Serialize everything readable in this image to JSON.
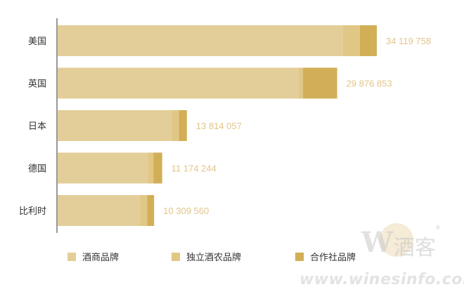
{
  "chart_data": {
    "type": "bar",
    "orientation": "horizontal",
    "stacked": true,
    "title": "",
    "xlabel": "",
    "ylabel": "",
    "categories": [
      "美国",
      "英国",
      "日本",
      "德国",
      "比利时"
    ],
    "totals": [
      "34 119 758",
      "29 876 853",
      "13 814 057",
      "11 174 244",
      "10 309 560"
    ],
    "series": [
      {
        "name": "酒商品牌",
        "color": "#e3ce99",
        "values": [
          30510000,
          25720000,
          12170000,
          9630000,
          8780000
        ]
      },
      {
        "name": "独立酒农品牌",
        "color": "#e1c785",
        "values": [
          1800000,
          500000,
          800000,
          600000,
          800000
        ]
      },
      {
        "name": "合作社品牌",
        "color": "#d2ae57",
        "values": [
          1809758,
          3656853,
          844057,
          944244,
          729560
        ]
      }
    ],
    "xlim": [
      0,
      34119758
    ],
    "grid": false,
    "legend_position": "bottom"
  },
  "watermark": {
    "logo_letter": "W",
    "logo_text": "酒客",
    "logo_mark": "®",
    "url": "www.winesinfo.com"
  }
}
